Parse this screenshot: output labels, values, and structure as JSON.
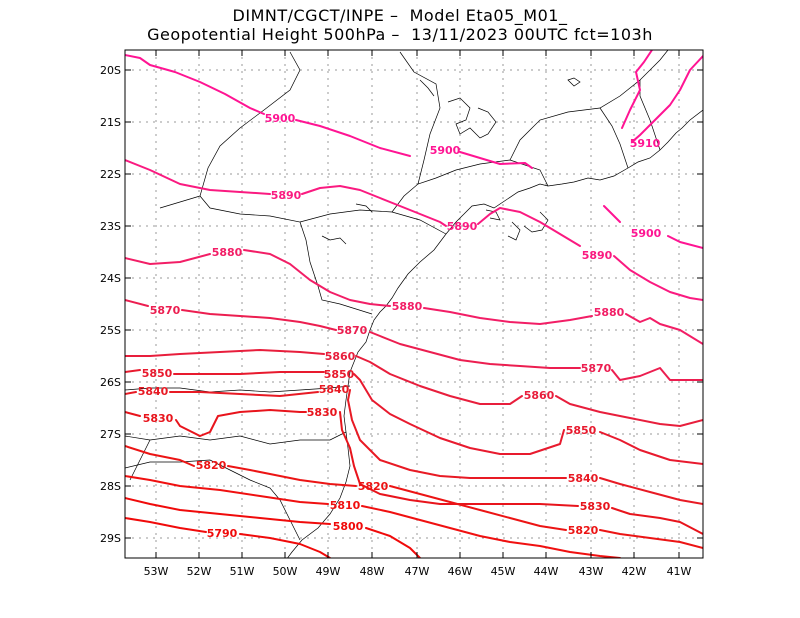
{
  "header": {
    "title_line1": "DIMNT/CGCT/INPE –  Model Eta05_M01_",
    "title_line2": "Geopotential Height 500hPa –  13/11/2023 00UTC fct=103h"
  },
  "axes": {
    "lat_labels": [
      "20S",
      "21S",
      "22S",
      "23S",
      "24S",
      "25S",
      "26S",
      "27S",
      "28S",
      "29S"
    ],
    "lon_labels": [
      "53W",
      "52W",
      "51W",
      "50W",
      "49W",
      "48W",
      "47W",
      "46W",
      "45W",
      "44W",
      "43W",
      "42W",
      "41W"
    ]
  },
  "colors": {
    "c5900": "#ff1493",
    "c5890": "#fa1a80",
    "c5880": "#f21e66",
    "c5870": "#ec1e50",
    "c5860": "#e81e3c",
    "c5850": "#e81a2e",
    "c5840": "#e81a24",
    "c5830": "#e8141c",
    "c5820": "#ec1414",
    "c5810": "#f01010",
    "c5800": "#f00a0a",
    "c5790": "#f00a0a"
  },
  "contours": [
    {
      "key": "5910",
      "labels": [
        {
          "text": "5910"
        }
      ]
    },
    {
      "key": "5900",
      "labels": [
        {
          "text": "5900"
        },
        {
          "text": "5900"
        },
        {
          "text": "5900"
        }
      ]
    },
    {
      "key": "5890",
      "labels": [
        {
          "text": "5890"
        },
        {
          "text": "5890"
        },
        {
          "text": "5890"
        }
      ]
    },
    {
      "key": "5880",
      "labels": [
        {
          "text": "5880"
        },
        {
          "text": "5880"
        },
        {
          "text": "5880"
        }
      ]
    },
    {
      "key": "5870",
      "labels": [
        {
          "text": "5870"
        },
        {
          "text": "5870"
        },
        {
          "text": "5870"
        }
      ]
    },
    {
      "key": "5860",
      "labels": [
        {
          "text": "5860"
        },
        {
          "text": "5860"
        }
      ]
    },
    {
      "key": "5850",
      "labels": [
        {
          "text": "5850"
        },
        {
          "text": "5850"
        },
        {
          "text": "5850"
        }
      ]
    },
    {
      "key": "5840",
      "labels": [
        {
          "text": "5840"
        },
        {
          "text": "5840"
        },
        {
          "text": "5840"
        }
      ]
    },
    {
      "key": "5830",
      "labels": [
        {
          "text": "5830"
        },
        {
          "text": "5830"
        },
        {
          "text": "5830"
        }
      ]
    },
    {
      "key": "5820",
      "labels": [
        {
          "text": "5820"
        },
        {
          "text": "5820"
        },
        {
          "text": "5820"
        }
      ]
    },
    {
      "key": "5810",
      "labels": [
        {
          "text": "5810"
        }
      ]
    },
    {
      "key": "5800",
      "labels": [
        {
          "text": "5800"
        }
      ]
    },
    {
      "key": "5790",
      "labels": [
        {
          "text": "5790"
        }
      ]
    }
  ]
}
